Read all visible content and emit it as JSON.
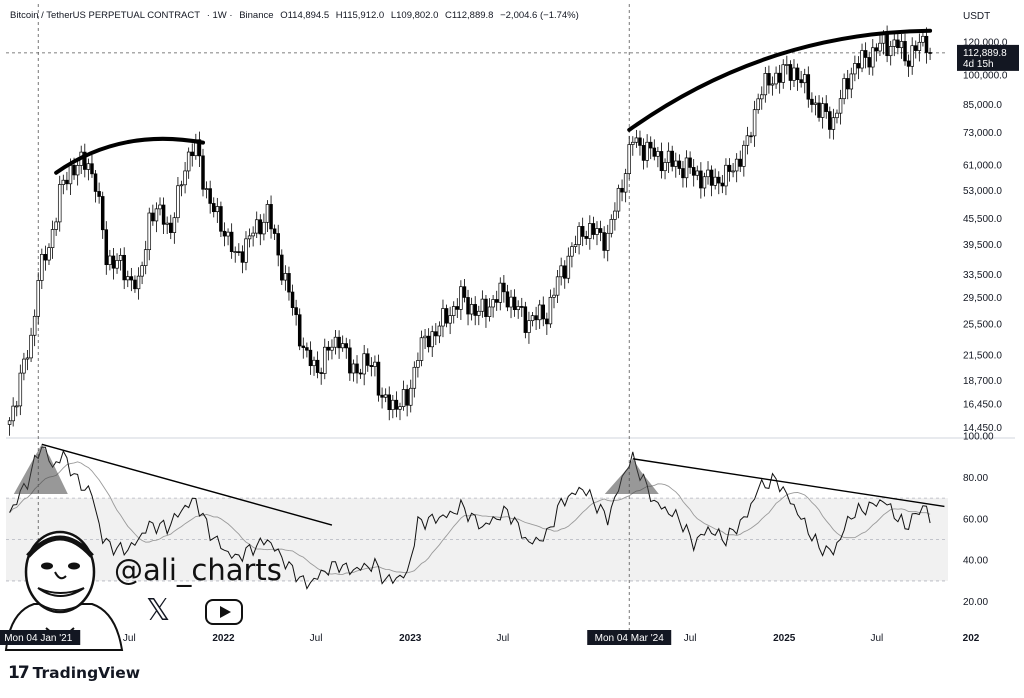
{
  "header": {
    "symbol": "Bitcoin / TetherUS PERPETUAL CONTRACT",
    "interval": "· 1W ·",
    "exchange": "Binance",
    "open": "O114,894.5",
    "high": "H115,912.0",
    "low": "L109,802.0",
    "close": "C112,889.8",
    "change": "−2,004.6 (−1.74%)"
  },
  "currency": "USDT",
  "price_tag": {
    "price": "112,889.8",
    "countdown": "4d 15h"
  },
  "crosshair_labels": [
    "Mon 04 Jan '21",
    "Mon 04 Mar '24"
  ],
  "watermark": {
    "handle": "@ali_charts"
  },
  "logo": {
    "mark": "17",
    "word": "TradingView"
  },
  "colors": {
    "background": "#ffffff",
    "candle": "#000000",
    "grid_dash": "#b2b5be",
    "rsi_band": "#f1f1f1",
    "text": "#131722"
  },
  "icons": [
    "x-logo-icon",
    "youtube-icon",
    "tradingview-logo-icon",
    "avatar-caricature"
  ],
  "chart_data": [
    {
      "type": "candlestick",
      "y_scale": "log",
      "ylim": [
        13500,
        128000
      ],
      "y_ticks": [
        120000,
        100000,
        85000,
        73000,
        61000,
        53000,
        45500,
        39500,
        33500,
        29500,
        25500,
        21500,
        18700,
        16450,
        14450
      ],
      "y_tick_labels": [
        "120,000.0",
        "100,000.0",
        "85,000.0",
        "73,000.0",
        "61,000.0",
        "53,000.0",
        "45,500.0",
        "39,500.0",
        "33,500.0",
        "29,500.0",
        "25,500.0",
        "21,500.0",
        "18,700.0",
        "16,450.0",
        "14,450.0"
      ],
      "x_labels": [
        "Jul",
        "2022",
        "Jul",
        "2023",
        "Jul",
        "Jul",
        "2025",
        "Jul",
        "202"
      ],
      "close_path": [
        [
          "2020-11-09",
          15000
        ],
        [
          "2020-12-21",
          23500
        ],
        [
          "2021-01-04",
          33000
        ],
        [
          "2021-01-25",
          39000
        ],
        [
          "2021-02-15",
          52000
        ],
        [
          "2021-03-08",
          60000
        ],
        [
          "2021-04-12",
          62000
        ],
        [
          "2021-04-26",
          55000
        ],
        [
          "2021-05-17",
          37000
        ],
        [
          "2021-06-14",
          35000
        ],
        [
          "2021-07-19",
          31000
        ],
        [
          "2021-08-09",
          46000
        ],
        [
          "2021-09-06",
          47000
        ],
        [
          "2021-09-20",
          42000
        ],
        [
          "2021-10-18",
          62000
        ],
        [
          "2021-11-08",
          67500
        ],
        [
          "2021-12-06",
          49000
        ],
        [
          "2022-01-03",
          43000
        ],
        [
          "2022-01-24",
          36500
        ],
        [
          "2022-03-28",
          47000
        ],
        [
          "2022-05-09",
          30000
        ],
        [
          "2022-06-13",
          21000
        ],
        [
          "2022-07-04",
          20000
        ],
        [
          "2022-08-15",
          24000
        ],
        [
          "2022-09-05",
          20000
        ],
        [
          "2022-10-24",
          20500
        ],
        [
          "2022-11-07",
          16500
        ],
        [
          "2022-12-26",
          16600
        ],
        [
          "2023-01-16",
          22000
        ],
        [
          "2023-03-13",
          26500
        ],
        [
          "2023-04-10",
          29500
        ],
        [
          "2023-05-15",
          27000
        ],
        [
          "2023-07-03",
          30500
        ],
        [
          "2023-08-14",
          26000
        ],
        [
          "2023-09-25",
          27000
        ],
        [
          "2023-10-23",
          34000
        ],
        [
          "2023-12-04",
          43000
        ],
        [
          "2024-01-22",
          41000
        ],
        [
          "2024-02-26",
          60000
        ],
        [
          "2024-03-11",
          70000
        ],
        [
          "2024-05-06",
          63000
        ],
        [
          "2024-06-24",
          60000
        ],
        [
          "2024-08-05",
          56000
        ],
        [
          "2024-09-09",
          57000
        ],
        [
          "2024-10-21",
          68000
        ],
        [
          "2024-11-11",
          90000
        ],
        [
          "2024-12-16",
          100000
        ],
        [
          "2025-01-20",
          103000
        ],
        [
          "2025-03-10",
          82000
        ],
        [
          "2025-04-07",
          78000
        ],
        [
          "2025-05-12",
          103000
        ],
        [
          "2025-07-14",
          119000
        ],
        [
          "2025-08-11",
          118000
        ],
        [
          "2025-08-25",
          110000
        ],
        [
          "2025-09-15",
          115000
        ],
        [
          "2025-10-06",
          122000
        ],
        [
          "2025-10-13",
          112889.8
        ]
      ]
    },
    {
      "type": "line",
      "panel": "RSI",
      "ylim": [
        15,
        100
      ],
      "y_ticks": [
        100,
        80,
        60,
        40,
        20
      ],
      "y_tick_labels": [
        "100.00",
        "80.00",
        "60.00",
        "40.00",
        "20.00"
      ],
      "band": [
        30,
        70
      ],
      "midline": 50,
      "series": [
        {
          "points": [
            [
              "2020-11-09",
              63
            ],
            [
              "2020-12-14",
              78
            ],
            [
              "2021-01-11",
              96
            ],
            [
              "2021-02-01",
              85
            ],
            [
              "2021-02-22",
              91
            ],
            [
              "2021-03-22",
              78
            ],
            [
              "2021-04-19",
              72
            ],
            [
              "2021-05-10",
              50
            ],
            [
              "2021-06-07",
              45
            ],
            [
              "2021-07-05",
              46
            ],
            [
              "2021-08-09",
              57
            ],
            [
              "2021-09-13",
              56
            ],
            [
              "2021-10-18",
              66
            ],
            [
              "2021-11-08",
              69
            ],
            [
              "2021-12-06",
              53
            ],
            [
              "2022-01-03",
              45
            ],
            [
              "2022-01-24",
              41
            ],
            [
              "2022-03-28",
              50
            ],
            [
              "2022-05-09",
              37
            ],
            [
              "2022-06-13",
              28
            ],
            [
              "2022-07-25",
              36
            ],
            [
              "2022-08-15",
              38
            ],
            [
              "2022-09-05",
              35
            ],
            [
              "2022-10-24",
              38
            ],
            [
              "2022-11-14",
              30
            ],
            [
              "2022-12-26",
              33
            ],
            [
              "2023-01-16",
              58
            ],
            [
              "2023-03-20",
              62
            ],
            [
              "2023-04-10",
              66
            ],
            [
              "2023-05-22",
              56
            ],
            [
              "2023-07-10",
              64
            ],
            [
              "2023-08-21",
              48
            ],
            [
              "2023-09-25",
              52
            ],
            [
              "2023-10-23",
              68
            ],
            [
              "2023-12-04",
              75
            ],
            [
              "2024-01-22",
              60
            ],
            [
              "2024-02-26",
              84
            ],
            [
              "2024-03-11",
              89
            ],
            [
              "2024-04-22",
              68
            ],
            [
              "2024-06-10",
              60
            ],
            [
              "2024-07-08",
              48
            ],
            [
              "2024-08-05",
              55
            ],
            [
              "2024-09-09",
              50
            ],
            [
              "2024-10-21",
              62
            ],
            [
              "2024-11-11",
              75
            ],
            [
              "2024-12-16",
              79
            ],
            [
              "2025-01-20",
              66
            ],
            [
              "2025-03-10",
              46
            ],
            [
              "2025-04-07",
              44
            ],
            [
              "2025-05-12",
              62
            ],
            [
              "2025-07-14",
              69
            ],
            [
              "2025-08-25",
              56
            ],
            [
              "2025-09-15",
              62
            ],
            [
              "2025-10-06",
              67
            ],
            [
              "2025-10-13",
              58
            ]
          ]
        }
      ]
    }
  ]
}
